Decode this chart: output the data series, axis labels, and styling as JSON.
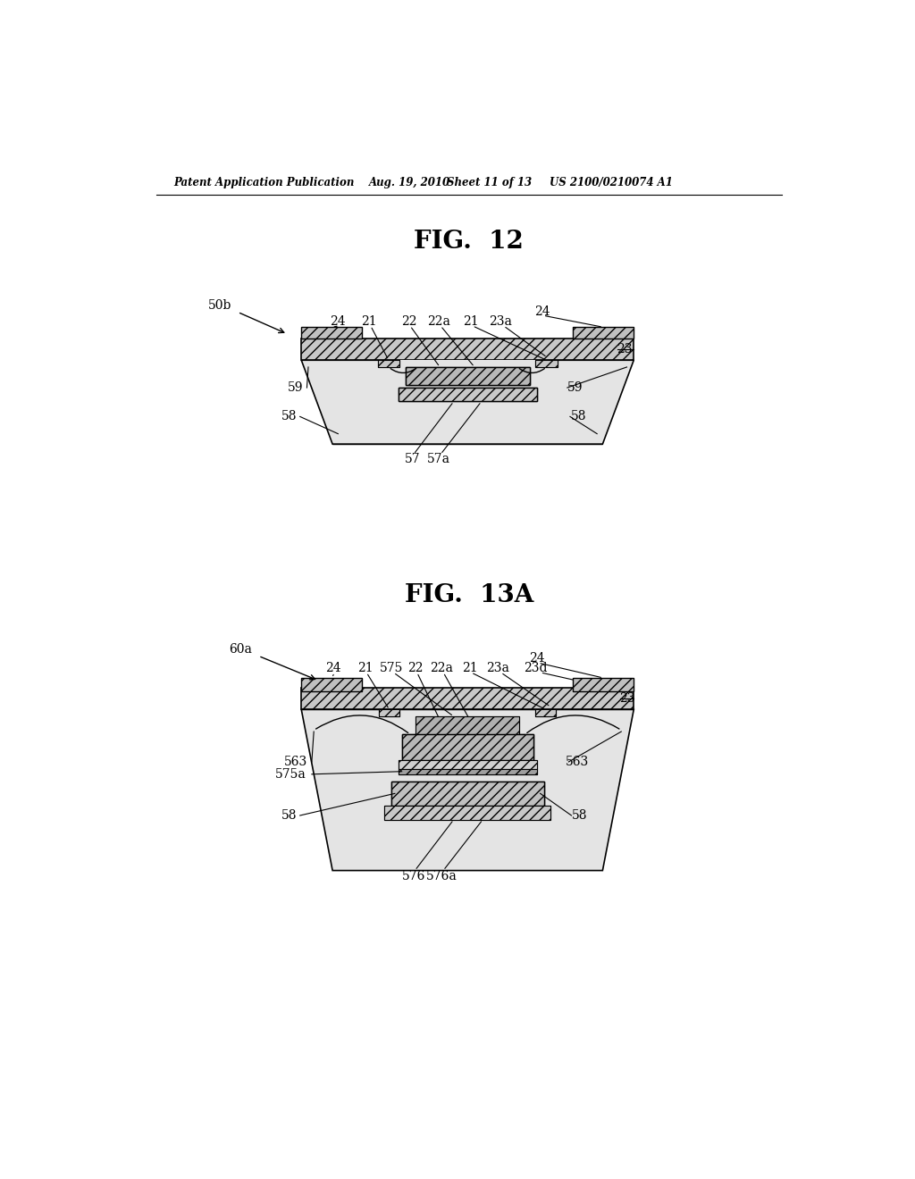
{
  "bg_color": "#ffffff",
  "line_color": "#000000",
  "header_text": "Patent Application Publication",
  "header_date": "Aug. 19, 2010",
  "header_sheet": "Sheet 11 of 13",
  "header_patent": "US 2100/0210074 A1",
  "fig12_title": "FIG. 12",
  "fig13a_title": "FIG. 13A"
}
